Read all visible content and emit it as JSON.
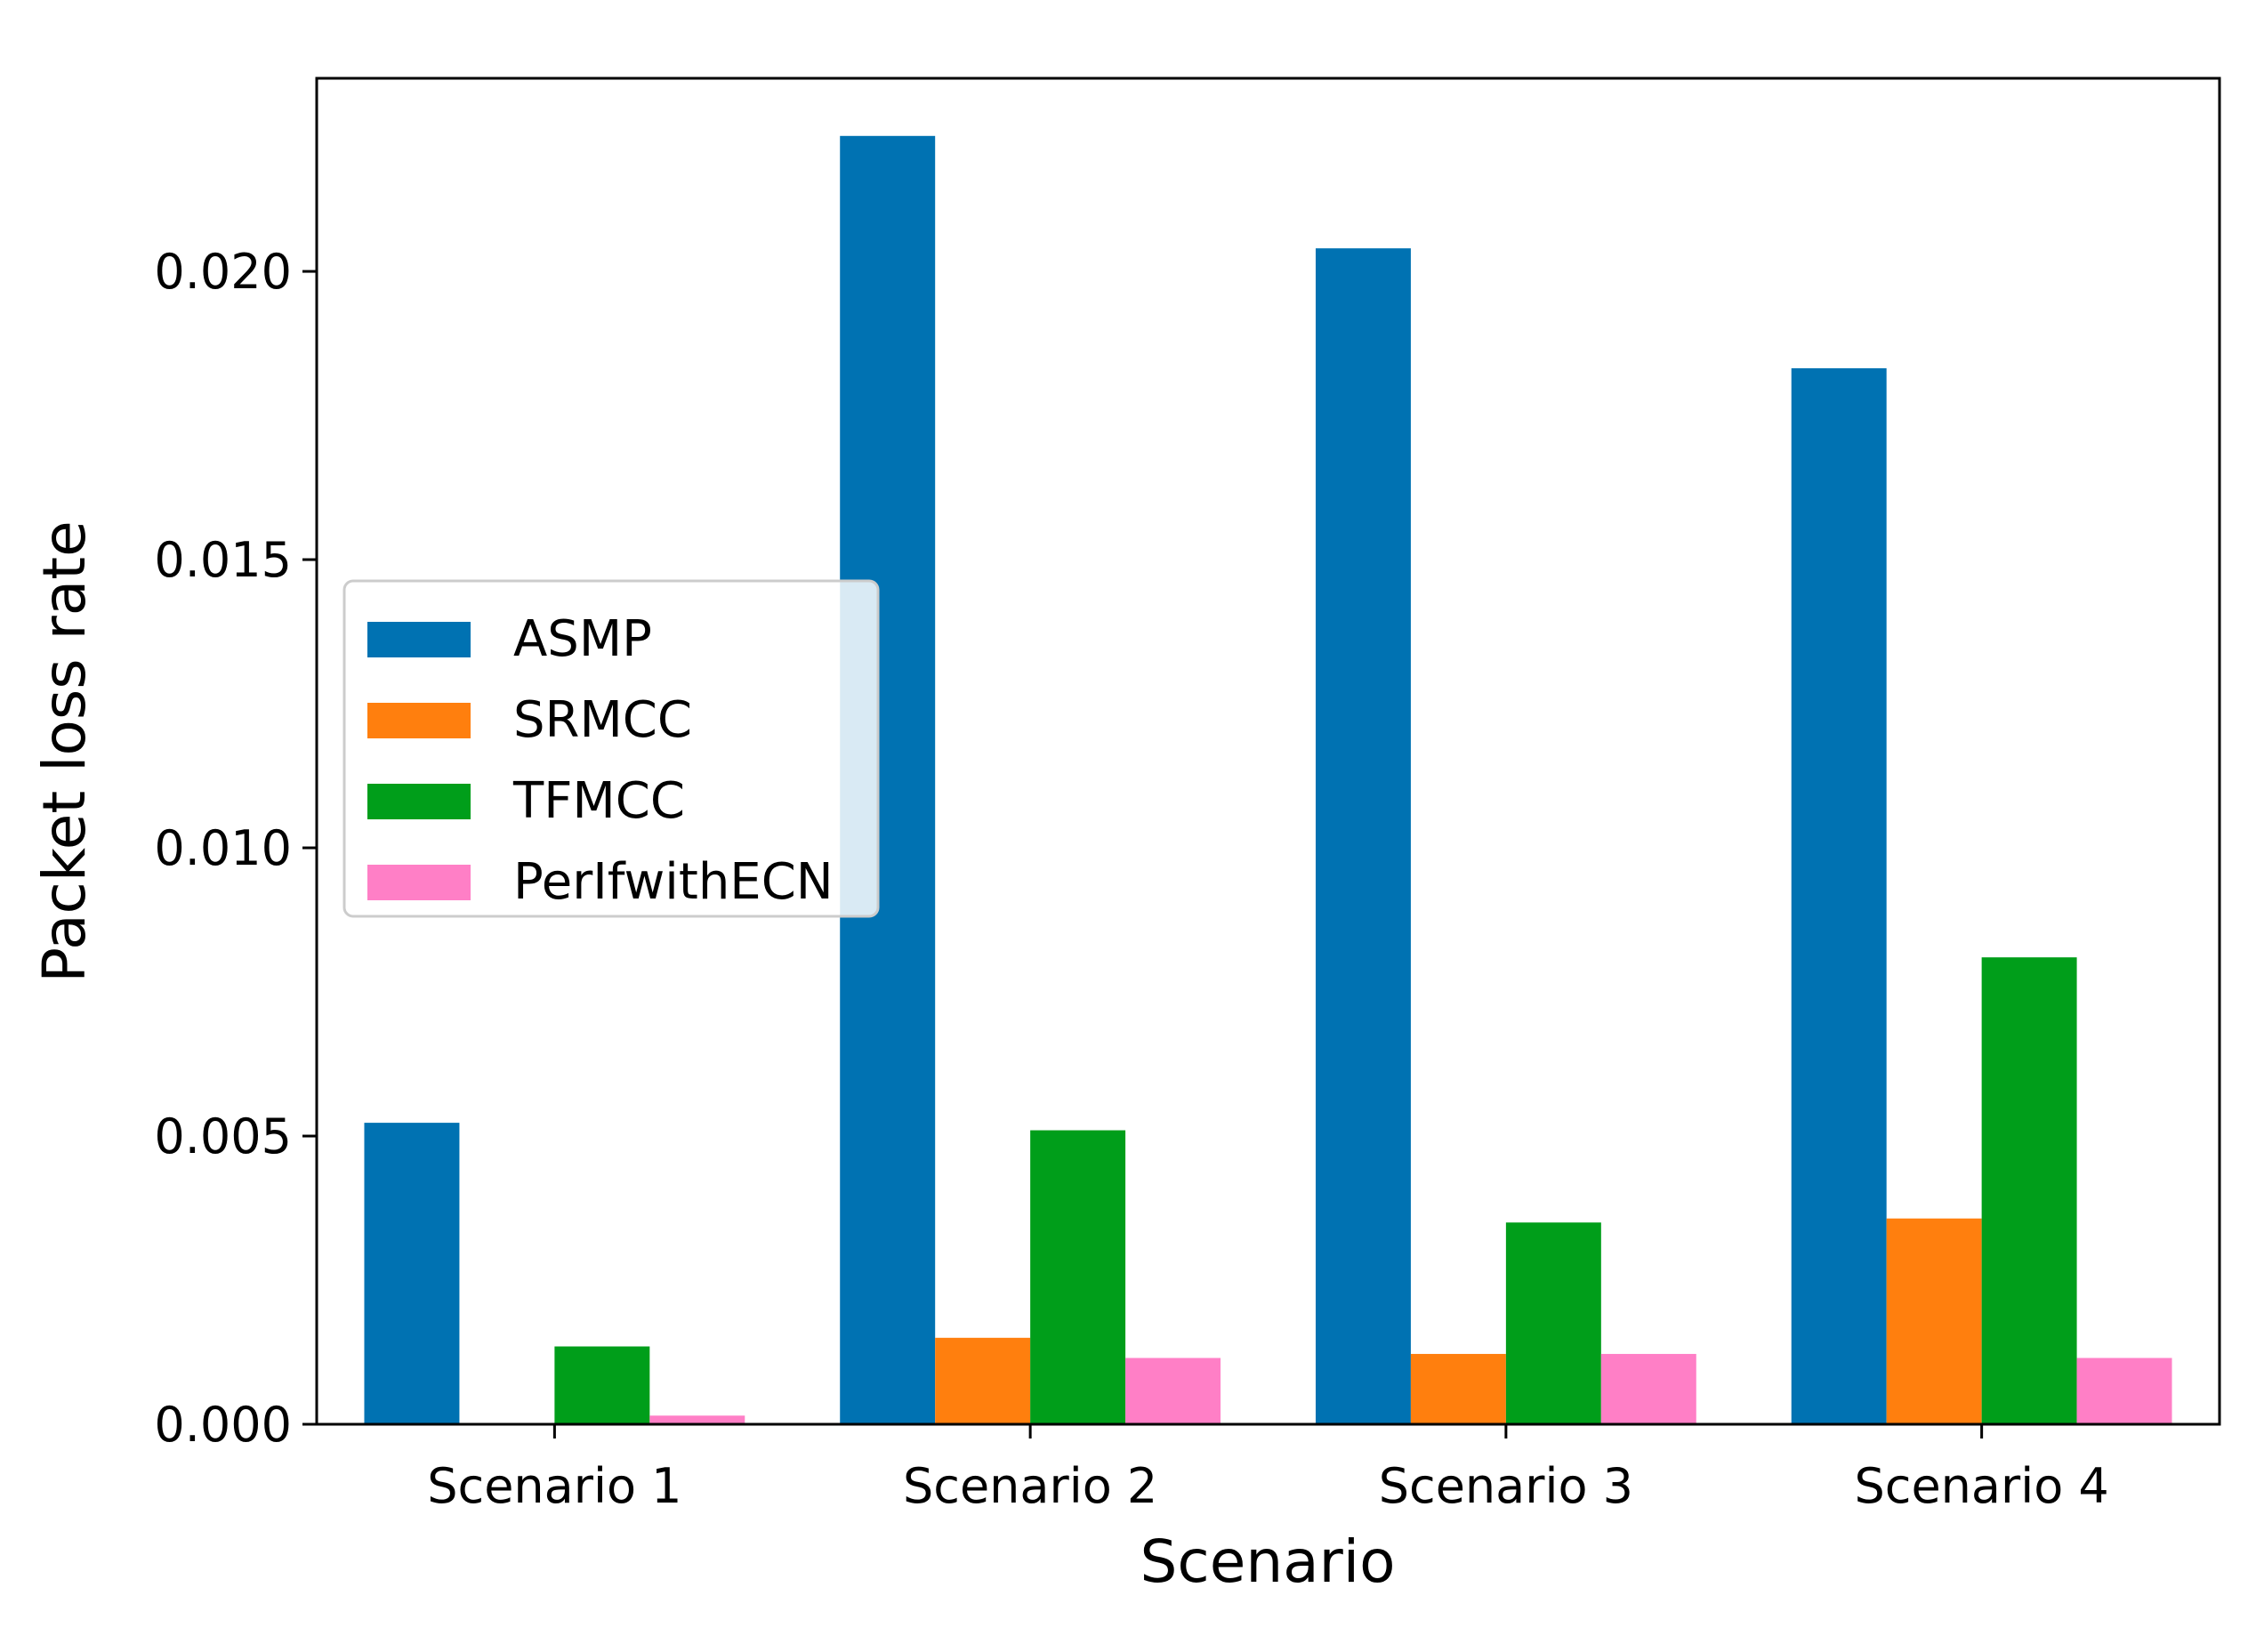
{
  "chart_data": {
    "type": "bar",
    "title": "",
    "xlabel": "Scenario",
    "ylabel": "Packet loss rate",
    "categories": [
      "Scenario 1",
      "Scenario 2",
      "Scenario 3",
      "Scenario 4"
    ],
    "series": [
      {
        "name": "ASMP",
        "color": "#0072b2",
        "values": [
          0.00523,
          0.02235,
          0.0204,
          0.01832
        ]
      },
      {
        "name": "SRMCC",
        "color": "#ff7f0e",
        "values": [
          0.0,
          0.0015,
          0.00122,
          0.00357
        ]
      },
      {
        "name": "TFMCC",
        "color": "#009e1a",
        "values": [
          0.00135,
          0.0051,
          0.0035,
          0.0081
        ]
      },
      {
        "name": "PerIfwithECN",
        "color": "#ff7fc6",
        "values": [
          0.00015,
          0.00115,
          0.00122,
          0.00115
        ]
      }
    ],
    "ylim": [
      0,
      0.02335
    ],
    "yticks": [
      "0.000",
      "0.005",
      "0.010",
      "0.015",
      "0.020"
    ],
    "ytick_values": [
      0.0,
      0.005,
      0.01,
      0.015,
      0.02
    ],
    "grid": false,
    "legend_position": "center-left"
  }
}
